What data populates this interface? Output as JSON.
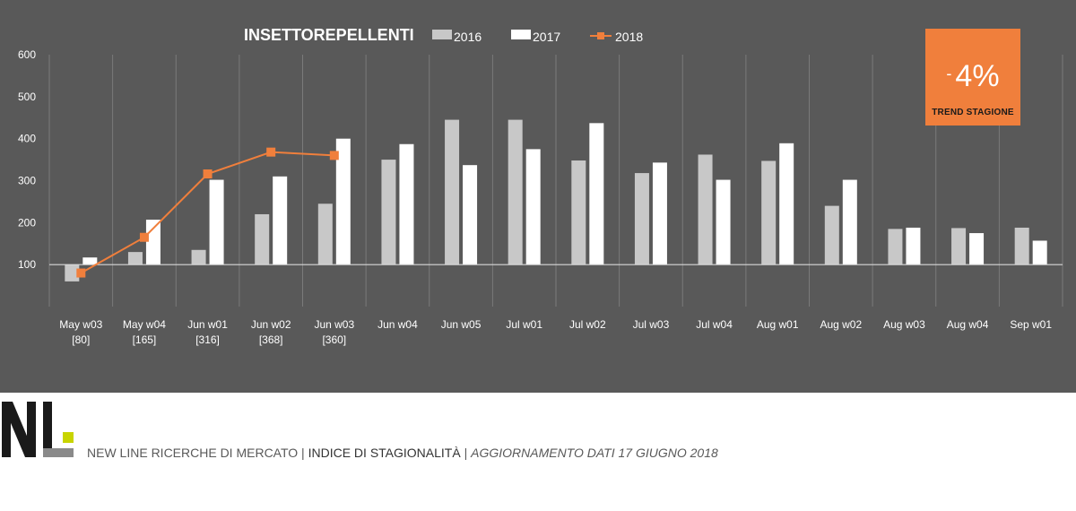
{
  "chart_data": {
    "type": "bar",
    "title": "INSETTOREPELLENTI",
    "categories": [
      "May w03",
      "May w04",
      "Jun w01",
      "Jun w02",
      "Jun w03",
      "Jun w04",
      "Jun w05",
      "Jul w01",
      "Jul w02",
      "Jul w03",
      "Jul w04",
      "Aug w01",
      "Aug w02",
      "Aug w03",
      "Aug w04",
      "Sep w01"
    ],
    "category_sublabels": [
      "[80]",
      "[165]",
      "[316]",
      "[368]",
      "[360]",
      "",
      "",
      "",
      "",
      "",
      "",
      "",
      "",
      "",
      "",
      ""
    ],
    "series": [
      {
        "name": "2016",
        "kind": "bar",
        "color": "#c8c8c8",
        "values": [
          60,
          130,
          135,
          220,
          245,
          350,
          445,
          445,
          348,
          318,
          362,
          347,
          240,
          185,
          187,
          188
        ]
      },
      {
        "name": "2017",
        "kind": "bar",
        "color": "#ffffff",
        "values": [
          117,
          207,
          302,
          310,
          400,
          387,
          337,
          375,
          437,
          343,
          302,
          389,
          302,
          188,
          175,
          157
        ]
      },
      {
        "name": "2018",
        "kind": "line",
        "color": "#f07f3c",
        "values": [
          80,
          165,
          316,
          368,
          360,
          null,
          null,
          null,
          null,
          null,
          null,
          null,
          null,
          null,
          null,
          null
        ]
      }
    ],
    "yticks": [
      100,
      200,
      300,
      400,
      500,
      600
    ],
    "ylim": [
      0,
      600
    ],
    "baseline": 100,
    "grid": true,
    "legend": "top"
  },
  "trend": {
    "dash": "-",
    "value": "4%",
    "label": "TREND  STAGIONE"
  },
  "footer": {
    "company": "NEW LINE RICERCHE DI MERCATO",
    "sep1": " | ",
    "index": "INDICE DI STAGIONALITÀ",
    "sep2": " | ",
    "update": "AGGIORNAMENTO DATI 17 GIUGNO 2018"
  },
  "logo": {
    "text": "NL",
    "accent_color": "#c8d400"
  }
}
